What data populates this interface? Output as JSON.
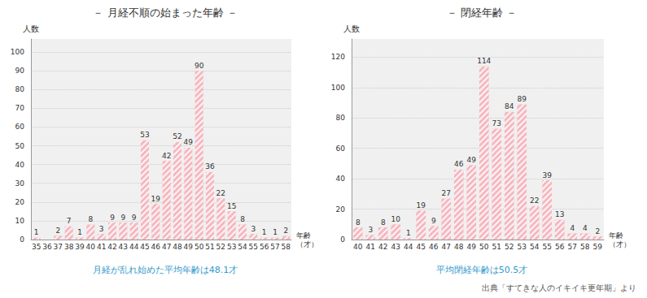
{
  "chart_data": [
    {
      "type": "bar",
      "title": "－ 月経不順の始まった年齢 －",
      "ylabel": "人数",
      "xlabel": "年齢\n（才）",
      "subtitle": "月経が乱れ始めた平均年齢は48.1才",
      "categories": [
        35,
        36,
        37,
        38,
        39,
        40,
        41,
        42,
        43,
        44,
        45,
        46,
        47,
        48,
        49,
        50,
        51,
        52,
        53,
        54,
        55,
        56,
        57,
        58
      ],
      "values": [
        1,
        0,
        2,
        7,
        1,
        8,
        3,
        9,
        9,
        9,
        53,
        19,
        42,
        52,
        49,
        90,
        36,
        22,
        15,
        8,
        3,
        1,
        1,
        2
      ],
      "color": "#f5b8c0",
      "ylim": [
        0,
        107
      ],
      "yticks": [
        0,
        10,
        20,
        30,
        40,
        50,
        60,
        70,
        80,
        90,
        100
      ],
      "grid": true,
      "data_labels": true
    },
    {
      "type": "bar",
      "title": "－ 閉経年齢 －",
      "ylabel": "人数",
      "xlabel": "年齢\n（才）",
      "subtitle": "平均閉経年齢は50.5才",
      "annotation": "出典「すてきな人のイキイキ更年期」より",
      "categories": [
        40,
        41,
        42,
        43,
        44,
        45,
        46,
        47,
        48,
        49,
        50,
        51,
        52,
        53,
        54,
        55,
        56,
        57,
        58,
        59
      ],
      "values": [
        8,
        3,
        8,
        10,
        1,
        19,
        9,
        27,
        46,
        49,
        114,
        73,
        84,
        89,
        22,
        39,
        13,
        4,
        4,
        2
      ],
      "color": "#f5b8c0",
      "ylim": [
        0,
        132
      ],
      "yticks": [
        0,
        20,
        40,
        60,
        80,
        100,
        120
      ],
      "grid": true,
      "data_labels": true
    }
  ]
}
